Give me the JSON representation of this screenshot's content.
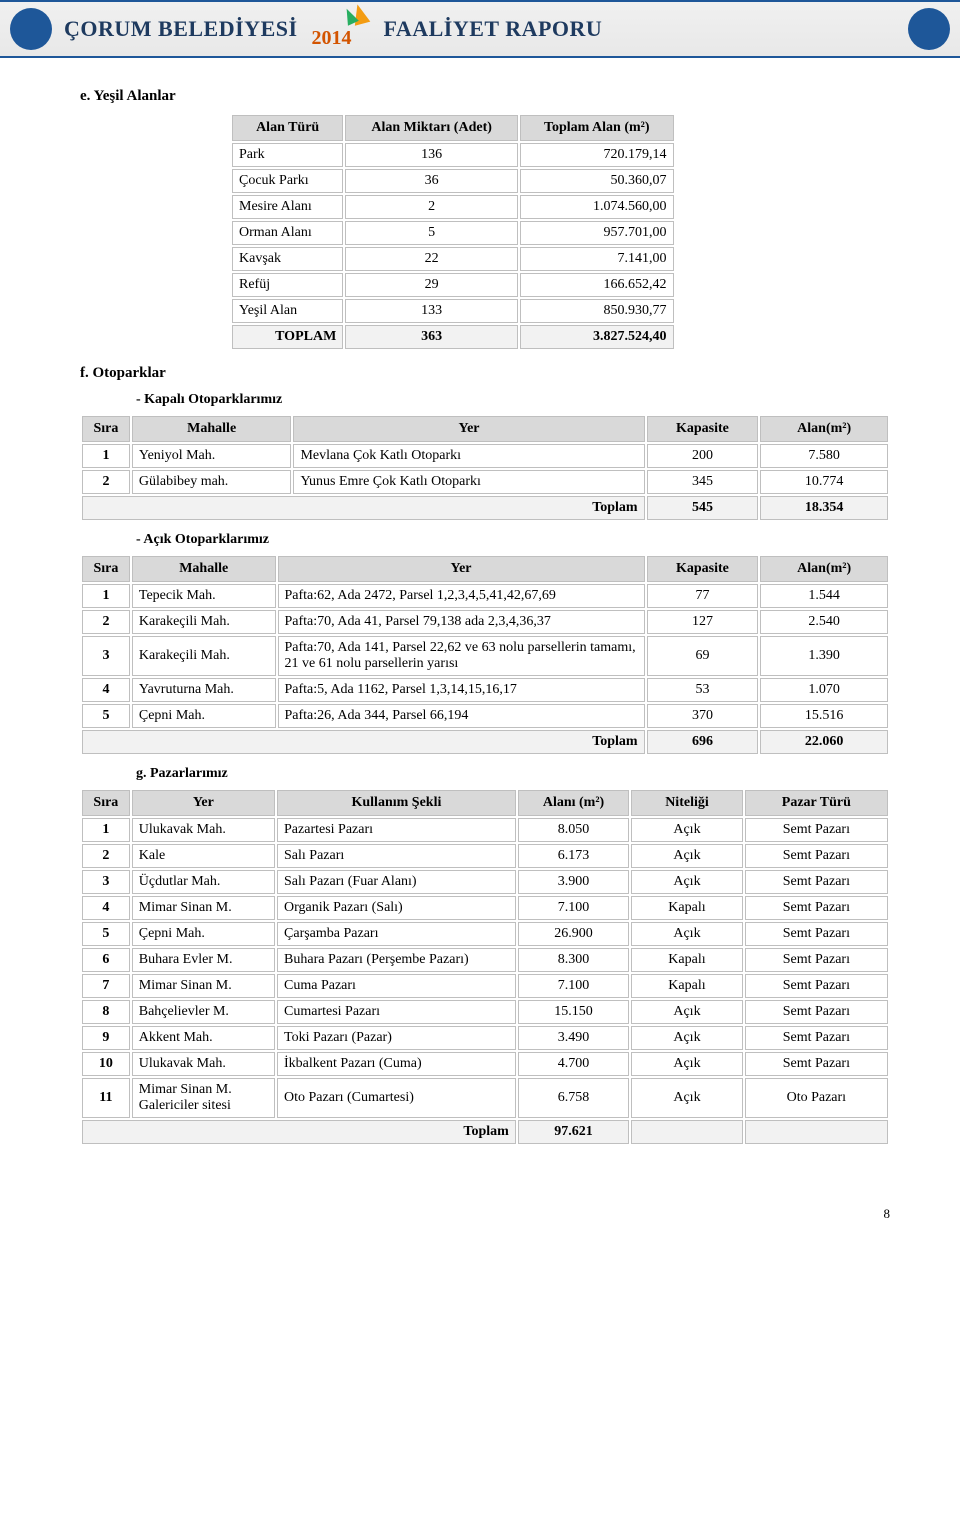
{
  "header": {
    "org": "ÇORUM BELEDİYESİ",
    "year": "2014",
    "report": "FAALİYET RAPORU"
  },
  "sections": {
    "e_title": "e.    Yeşil Alanlar",
    "f_title": "f.    Otoparklar",
    "f_sub1": "-    Kapalı Otoparklarımız",
    "f_sub2": "-    Açık Otoparklarımız",
    "g_title": "g.    Pazarlarımız"
  },
  "table_alan": {
    "headers": [
      "Alan Türü",
      "Alan Miktarı (Adet)",
      "Toplam Alan (m²)"
    ],
    "rows": [
      [
        "Park",
        "136",
        "720.179,14"
      ],
      [
        "Çocuk Parkı",
        "36",
        "50.360,07"
      ],
      [
        "Mesire Alanı",
        "2",
        "1.074.560,00"
      ],
      [
        "Orman Alanı",
        "5",
        "957.701,00"
      ],
      [
        "Kavşak",
        "22",
        "7.141,00"
      ],
      [
        "Refüj",
        "29",
        "166.652,42"
      ],
      [
        "Yeşil Alan",
        "133",
        "850.930,77"
      ]
    ],
    "total": [
      "TOPLAM",
      "363",
      "3.827.524,40"
    ]
  },
  "table_kapali": {
    "headers": [
      "Sıra",
      "Mahalle",
      "Yer",
      "Kapasite",
      "Alan(m²)"
    ],
    "rows": [
      [
        "1",
        "Yeniyol Mah.",
        "Mevlana Çok Katlı Otoparkı",
        "200",
        "7.580"
      ],
      [
        "2",
        "Gülabibey mah.",
        "Yunus Emre Çok Katlı Otoparkı",
        "345",
        "10.774"
      ]
    ],
    "total_label": "Toplam",
    "total": [
      "545",
      "18.354"
    ]
  },
  "table_acik": {
    "headers": [
      "Sıra",
      "Mahalle",
      "Yer",
      "Kapasite",
      "Alan(m²)"
    ],
    "rows": [
      [
        "1",
        "Tepecik Mah.",
        "Pafta:62, Ada 2472, Parsel 1,2,3,4,5,41,42,67,69",
        "77",
        "1.544"
      ],
      [
        "2",
        "Karakeçili Mah.",
        "Pafta:70, Ada 41, Parsel 79,138 ada 2,3,4,36,37",
        "127",
        "2.540"
      ],
      [
        "3",
        "Karakeçili Mah.",
        "Pafta:70, Ada 141, Parsel 22,62 ve 63 nolu parsellerin tamamı, 21 ve 61 nolu parsellerin yarısı",
        "69",
        "1.390"
      ],
      [
        "4",
        "Yavruturna Mah.",
        "Pafta:5, Ada 1162, Parsel 1,3,14,15,16,17",
        "53",
        "1.070"
      ],
      [
        "5",
        "Çepni Mah.",
        "Pafta:26, Ada 344, Parsel 66,194",
        "370",
        "15.516"
      ]
    ],
    "total_label": "Toplam",
    "total": [
      "696",
      "22.060"
    ]
  },
  "table_pazar": {
    "headers": [
      "Sıra",
      "Yer",
      "Kullanım Şekli",
      "Alanı (m²)",
      "Niteliği",
      "Pazar Türü"
    ],
    "rows": [
      [
        "1",
        "Ulukavak  Mah.",
        "Pazartesi Pazarı",
        "8.050",
        "Açık",
        "Semt Pazarı"
      ],
      [
        "2",
        "Kale",
        "Salı Pazarı",
        "6.173",
        "Açık",
        "Semt Pazarı"
      ],
      [
        "3",
        "Üçdutlar Mah.",
        "Salı Pazarı (Fuar Alanı)",
        "3.900",
        "Açık",
        "Semt Pazarı"
      ],
      [
        "4",
        "Mimar Sinan M.",
        "Organik Pazarı (Salı)",
        "7.100",
        "Kapalı",
        "Semt Pazarı"
      ],
      [
        "5",
        "Çepni Mah.",
        "Çarşamba Pazarı",
        "26.900",
        "Açık",
        "Semt Pazarı"
      ],
      [
        "6",
        "Buhara Evler M.",
        "Buhara Pazarı (Perşembe Pazarı)",
        "8.300",
        "Kapalı",
        "Semt Pazarı"
      ],
      [
        "7",
        "Mimar Sinan M.",
        "Cuma Pazarı",
        "7.100",
        "Kapalı",
        "Semt Pazarı"
      ],
      [
        "8",
        "Bahçelievler M.",
        "Cumartesi Pazarı",
        "15.150",
        "Açık",
        "Semt Pazarı"
      ],
      [
        "9",
        "Akkent Mah.",
        "Toki Pazarı (Pazar)",
        "3.490",
        "Açık",
        "Semt Pazarı"
      ],
      [
        "10",
        "Ulukavak Mah.",
        "İkbalkent Pazarı (Cuma)",
        "4.700",
        "Açık",
        "Semt Pazarı"
      ],
      [
        "11",
        "Mimar Sinan M. Galericiler sitesi",
        "Oto Pazarı (Cumartesi)",
        "6.758",
        "Açık",
        "Oto Pazarı"
      ]
    ],
    "total_label": "Toplam",
    "total": "97.621"
  },
  "page_number": "8",
  "colors": {
    "header_border": "#1e5799",
    "header_text": "#1e3a5f",
    "th_bg": "#d9d9d9",
    "cell_border": "#bfbfbf",
    "total_bg": "#f2f2f2"
  }
}
